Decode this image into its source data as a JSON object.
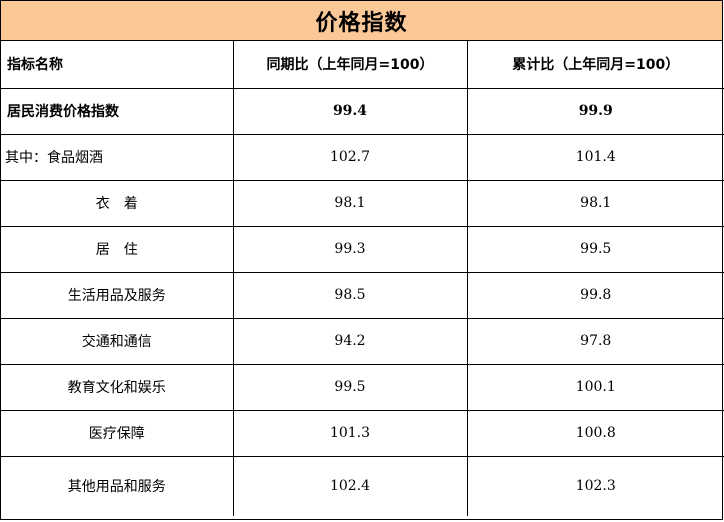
{
  "title": "价格指数",
  "colors": {
    "title_background": "#fbc898"
  },
  "headers": {
    "name": "指标名称",
    "yoy": "同期比（上年同月=100）",
    "cumulative": "累计比（上年同月=100）"
  },
  "rows": [
    {
      "name": "居民消费价格指数",
      "yoy": "99.4",
      "cumulative": "99.9"
    },
    {
      "name": "其中：食品烟酒",
      "yoy": "102.7",
      "cumulative": "101.4"
    },
    {
      "name": "衣　着",
      "yoy": "98.1",
      "cumulative": "98.1"
    },
    {
      "name": "居　住",
      "yoy": "99.3",
      "cumulative": "99.5"
    },
    {
      "name": "生活用品及服务",
      "yoy": "98.5",
      "cumulative": "99.8"
    },
    {
      "name": "交通和通信",
      "yoy": "94.2",
      "cumulative": "97.8"
    },
    {
      "name": "教育文化和娱乐",
      "yoy": "99.5",
      "cumulative": "100.1"
    },
    {
      "name": "医疗保障",
      "yoy": "101.3",
      "cumulative": "100.8"
    },
    {
      "name": "其他用品和服务",
      "yoy": "102.4",
      "cumulative": "102.3"
    }
  ]
}
